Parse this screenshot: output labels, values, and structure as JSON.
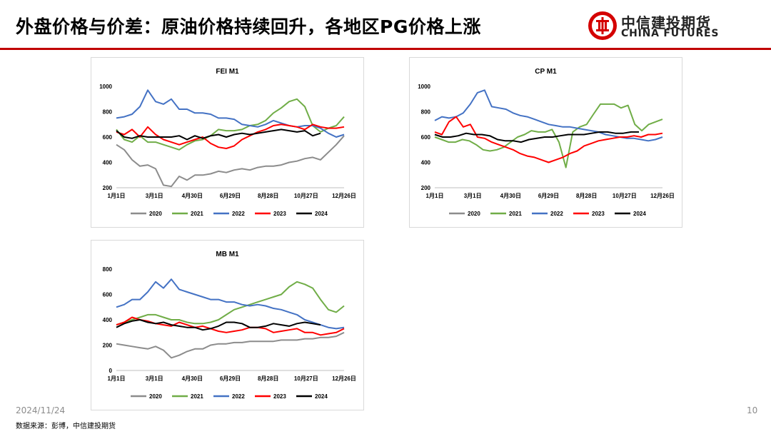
{
  "title": "外盘价格与价差：原油价格持续回升，各地区PG价格上涨",
  "logo": {
    "cn": "中信建投期货",
    "en": "CHINA FUTURES",
    "color": "#d40000"
  },
  "footer": {
    "date": "2024/11/24",
    "page": "10",
    "source": "数据来源：彭博，中信建投期货"
  },
  "chart_data": [
    {
      "type": "line",
      "title": "FEI M1",
      "x_labels": [
        "1月1日",
        "3月1日",
        "4月30日",
        "6月29日",
        "8月28日",
        "10月27日",
        "12月26日"
      ],
      "yticks": [
        200,
        400,
        600,
        800,
        1000
      ],
      "ylim": [
        200,
        1000
      ],
      "legend_position": "bottom",
      "series": [
        {
          "name": "2020",
          "color": "#8c8c8c",
          "values": [
            540,
            500,
            420,
            370,
            380,
            350,
            220,
            210,
            290,
            260,
            300,
            300,
            310,
            330,
            320,
            340,
            350,
            340,
            360,
            370,
            370,
            380,
            400,
            410,
            430,
            440,
            420,
            480,
            540,
            610
          ]
        },
        {
          "name": "2021",
          "color": "#70ad47",
          "values": [
            660,
            580,
            560,
            610,
            560,
            560,
            540,
            520,
            500,
            540,
            570,
            580,
            610,
            660,
            650,
            650,
            660,
            690,
            700,
            730,
            790,
            830,
            880,
            900,
            840,
            690,
            640,
            670,
            690,
            760
          ]
        },
        {
          "name": "2022",
          "color": "#4472c4",
          "values": [
            750,
            760,
            780,
            840,
            970,
            880,
            860,
            900,
            820,
            820,
            790,
            790,
            780,
            750,
            750,
            740,
            700,
            690,
            680,
            700,
            730,
            710,
            690,
            680,
            690,
            690,
            670,
            630,
            600,
            620
          ]
        },
        {
          "name": "2023",
          "color": "#ff0000",
          "values": [
            640,
            620,
            660,
            600,
            680,
            620,
            580,
            560,
            540,
            560,
            580,
            600,
            550,
            520,
            510,
            530,
            580,
            610,
            640,
            660,
            690,
            700,
            690,
            680,
            660,
            700,
            680,
            670,
            670,
            680
          ]
        },
        {
          "name": "2024",
          "color": "#000000",
          "values": [
            650,
            600,
            590,
            610,
            600,
            600,
            600,
            600,
            610,
            580,
            610,
            590,
            610,
            620,
            600,
            620,
            630,
            620,
            630,
            640,
            650,
            660,
            650,
            640,
            650,
            610,
            630
          ]
        }
      ]
    },
    {
      "type": "line",
      "title": "CP M1",
      "x_labels": [
        "1月1日",
        "3月1日",
        "4月30日",
        "6月29日",
        "8月28日",
        "10月27日",
        "12月26日"
      ],
      "yticks": [
        200,
        400,
        600,
        800,
        1000
      ],
      "ylim": [
        200,
        1000
      ],
      "legend_position": "bottom",
      "series": [
        {
          "name": "2020",
          "color": "#8c8c8c",
          "values": []
        },
        {
          "name": "2021",
          "color": "#70ad47",
          "values": [
            600,
            580,
            560,
            560,
            580,
            570,
            540,
            500,
            490,
            500,
            520,
            560,
            600,
            620,
            650,
            640,
            640,
            660,
            560,
            360,
            640,
            680,
            700,
            780,
            860,
            860,
            860,
            830,
            850,
            700,
            650,
            700,
            720,
            740
          ]
        },
        {
          "name": "2022",
          "color": "#4472c4",
          "values": [
            730,
            760,
            750,
            760,
            790,
            860,
            950,
            970,
            840,
            830,
            820,
            790,
            770,
            760,
            740,
            720,
            700,
            690,
            680,
            680,
            670,
            660,
            650,
            640,
            620,
            610,
            600,
            590,
            590,
            580,
            570,
            580,
            600
          ]
        },
        {
          "name": "2023",
          "color": "#ff0000",
          "values": [
            640,
            620,
            720,
            760,
            680,
            700,
            600,
            590,
            560,
            540,
            520,
            500,
            470,
            450,
            440,
            420,
            400,
            420,
            440,
            470,
            490,
            530,
            550,
            570,
            580,
            590,
            600,
            600,
            610,
            600,
            620,
            620,
            630
          ]
        },
        {
          "name": "2024",
          "color": "#000000",
          "values": [
            620,
            600,
            600,
            610,
            630,
            620,
            620,
            610,
            580,
            570,
            570,
            560,
            580,
            590,
            600,
            600,
            610,
            620,
            620,
            620,
            630,
            640,
            640,
            630,
            630,
            640,
            640
          ]
        }
      ]
    },
    {
      "type": "line",
      "title": "MB M1",
      "x_labels": [
        "1月1日",
        "3月1日",
        "4月30日",
        "6月29日",
        "8月28日",
        "10月27日",
        "12月26日"
      ],
      "yticks": [
        0,
        200,
        400,
        600,
        800
      ],
      "ylim": [
        0,
        800
      ],
      "legend_position": "bottom",
      "series": [
        {
          "name": "2020",
          "color": "#8c8c8c",
          "values": [
            210,
            200,
            190,
            180,
            170,
            190,
            160,
            100,
            120,
            150,
            170,
            170,
            200,
            210,
            210,
            220,
            220,
            230,
            230,
            230,
            230,
            240,
            240,
            240,
            250,
            250,
            260,
            260,
            270,
            300
          ]
        },
        {
          "name": "2021",
          "color": "#70ad47",
          "values": [
            360,
            380,
            400,
            420,
            440,
            440,
            420,
            400,
            400,
            380,
            370,
            370,
            380,
            400,
            440,
            480,
            500,
            520,
            540,
            560,
            580,
            600,
            660,
            700,
            680,
            650,
            560,
            480,
            460,
            510
          ]
        },
        {
          "name": "2022",
          "color": "#4472c4",
          "values": [
            500,
            520,
            560,
            560,
            620,
            700,
            650,
            720,
            640,
            620,
            600,
            580,
            560,
            560,
            540,
            540,
            520,
            510,
            520,
            510,
            490,
            480,
            460,
            440,
            400,
            380,
            360,
            340,
            330,
            340
          ]
        },
        {
          "name": "2023",
          "color": "#ff0000",
          "values": [
            360,
            380,
            420,
            400,
            390,
            370,
            360,
            350,
            380,
            360,
            340,
            350,
            330,
            310,
            300,
            310,
            320,
            340,
            340,
            330,
            300,
            310,
            320,
            330,
            300,
            300,
            280,
            290,
            300,
            330
          ]
        },
        {
          "name": "2024",
          "color": "#000000",
          "values": [
            340,
            370,
            390,
            400,
            380,
            370,
            380,
            360,
            350,
            340,
            340,
            320,
            330,
            350,
            380,
            380,
            370,
            340,
            340,
            350,
            370,
            360,
            350,
            370,
            380,
            370,
            360
          ]
        }
      ]
    }
  ]
}
